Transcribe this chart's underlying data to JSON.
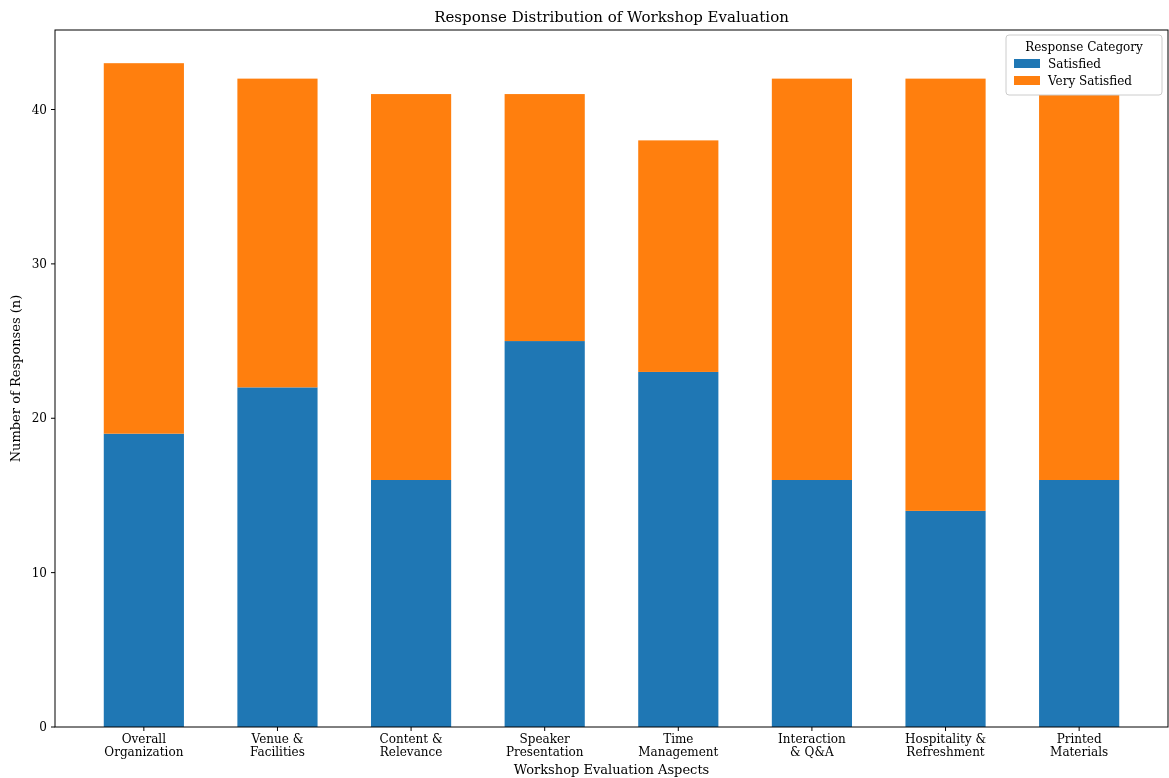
{
  "chart_data": {
    "type": "bar",
    "title": "Response Distribution of Workshop Evaluation",
    "xlabel": "Workshop Evaluation Aspects",
    "ylabel": "Number of Responses (n)",
    "legend_title": "Response Category",
    "categories": [
      "Overall\nOrganization",
      "Venue &\nFacilities",
      "Content &\nRelevance",
      "Speaker\nPresentation",
      "Time\nManagement",
      "Interaction\n& Q&A",
      "Hospitality &\nRefreshment",
      "Printed\nMaterials"
    ],
    "stacked": true,
    "series": [
      {
        "name": "Satisfied",
        "color": "#1f77b4",
        "values": [
          19,
          22,
          16,
          25,
          23,
          16,
          14,
          16
        ]
      },
      {
        "name": "Very Satisfied",
        "color": "#ff7f0e",
        "values": [
          24,
          20,
          25,
          16,
          15,
          26,
          28,
          25
        ]
      }
    ],
    "ylim": [
      0,
      45.15
    ],
    "yticks": [
      0,
      10,
      20,
      30,
      40
    ],
    "grid": false,
    "legend": "top right"
  }
}
